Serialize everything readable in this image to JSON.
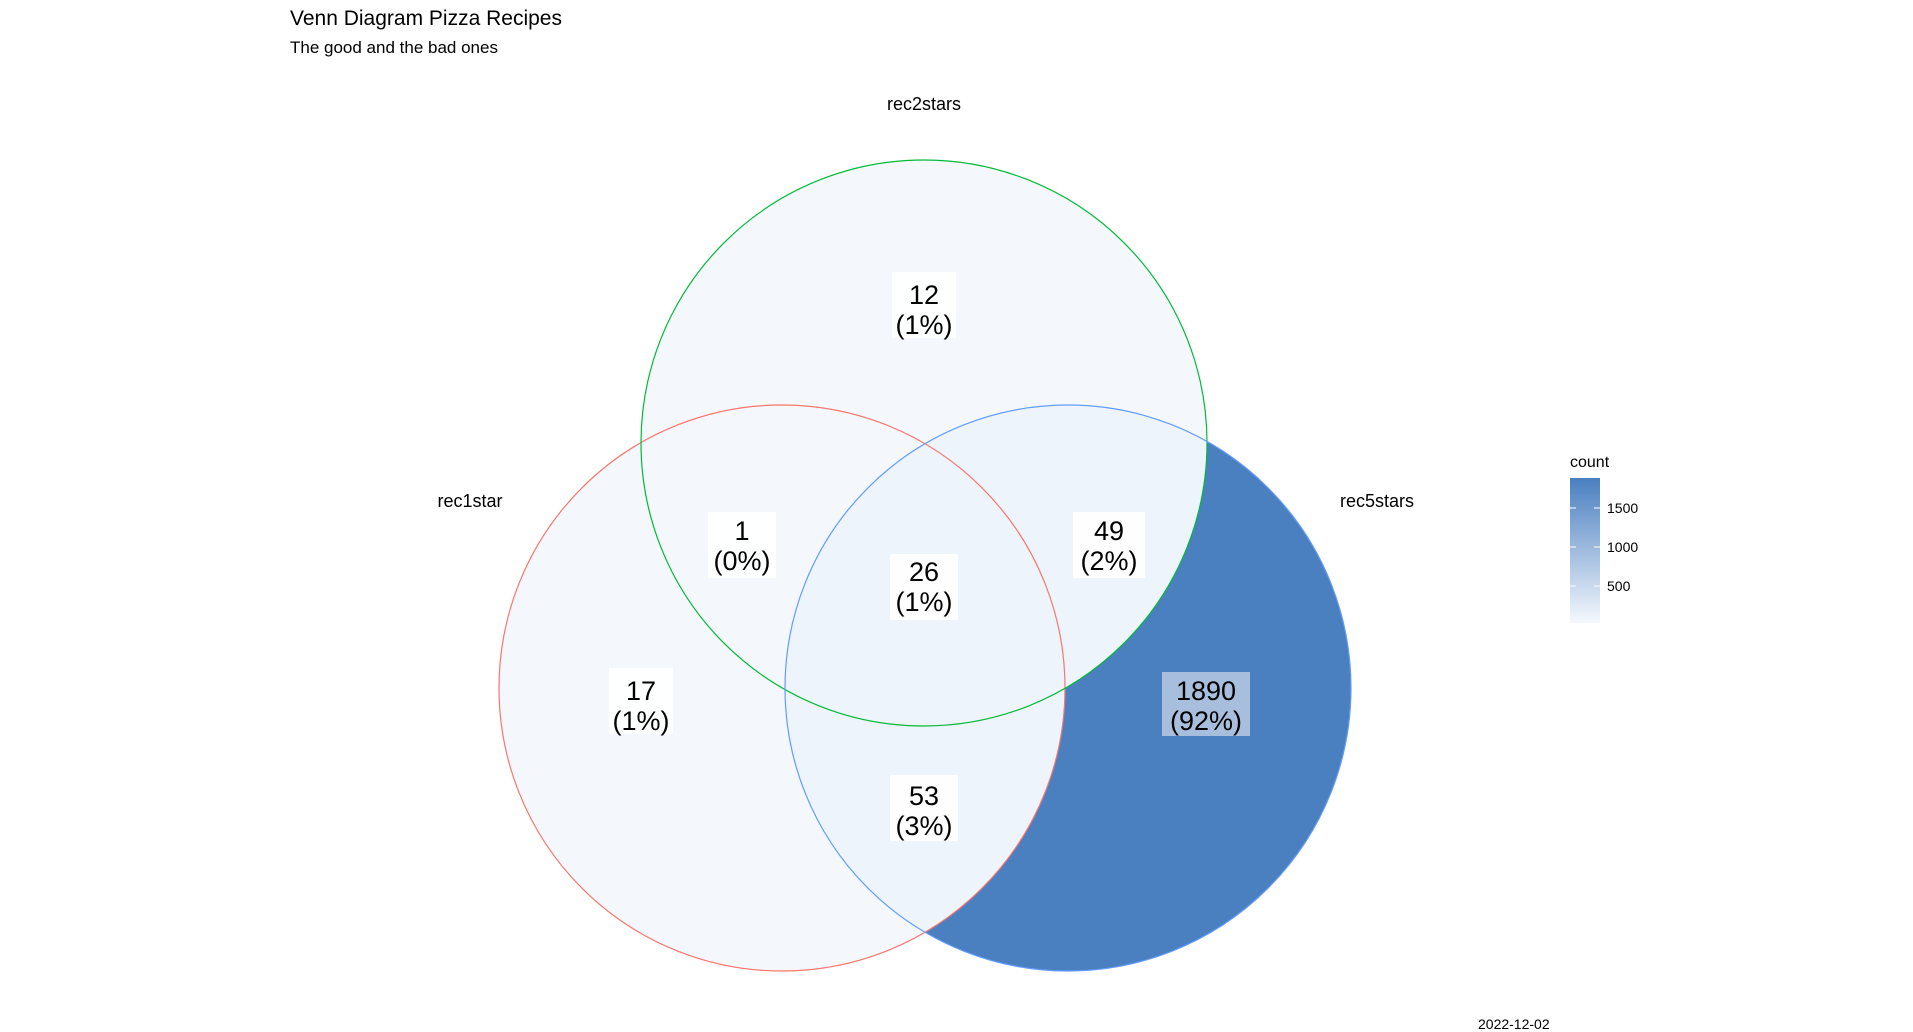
{
  "title": "Venn Diagram Pizza Recipes",
  "subtitle": "The good and the bad ones",
  "caption": "2022-12-02",
  "sets": [
    {
      "name": "rec1star",
      "color": "#F8766D"
    },
    {
      "name": "rec2stars",
      "color": "#00BA38"
    },
    {
      "name": "rec5stars",
      "color": "#619CFF"
    }
  ],
  "regions": [
    {
      "sets": [
        "rec1star"
      ],
      "count": "17",
      "percent": "(1%)"
    },
    {
      "sets": [
        "rec2stars"
      ],
      "count": "12",
      "percent": "(1%)"
    },
    {
      "sets": [
        "rec5stars"
      ],
      "count": "1890",
      "percent": "(92%)"
    },
    {
      "sets": [
        "rec1star",
        "rec2stars"
      ],
      "count": "1",
      "percent": "(0%)"
    },
    {
      "sets": [
        "rec2stars",
        "rec5stars"
      ],
      "count": "49",
      "percent": "(2%)"
    },
    {
      "sets": [
        "rec1star",
        "rec5stars"
      ],
      "count": "53",
      "percent": "(3%)"
    },
    {
      "sets": [
        "rec1star",
        "rec2stars",
        "rec5stars"
      ],
      "count": "26",
      "percent": "(1%)"
    }
  ],
  "legend": {
    "title": "count",
    "ticks": [
      "1500",
      "1000",
      "500"
    ],
    "low_color": "#F4F8FD",
    "high_color": "#4A7FC0"
  }
}
